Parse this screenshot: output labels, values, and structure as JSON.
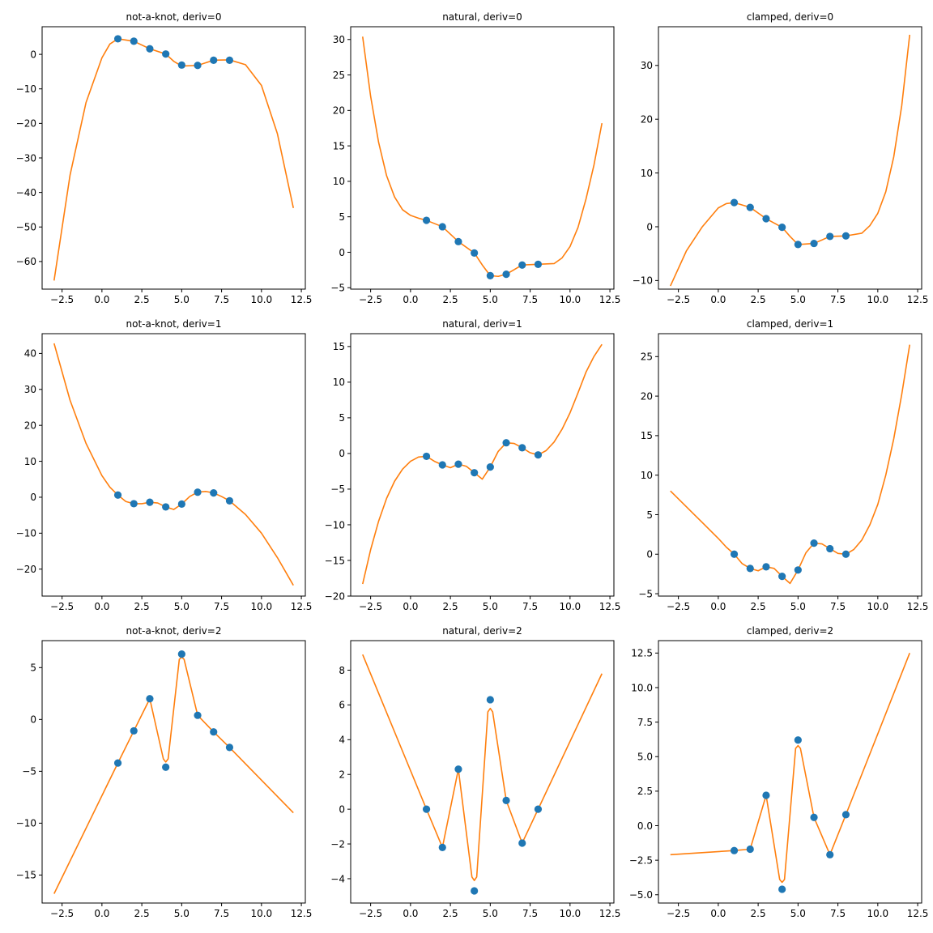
{
  "colors": {
    "points": "#1f77b4",
    "curve": "#ff7f0e",
    "axes": "#000000",
    "background": "#ffffff"
  },
  "chart_data": [
    {
      "type": "line",
      "title": "not-a-knot, deriv=0",
      "xlim": [
        -3.75,
        12.75
      ],
      "ylim": [
        -68,
        8
      ],
      "xticks": [
        -2.5,
        0.0,
        2.5,
        5.0,
        7.5,
        10.0,
        12.5
      ],
      "xtick_labels": [
        "−2.5",
        "0.0",
        "2.5",
        "5.0",
        "7.5",
        "10.0",
        "12.5"
      ],
      "yticks": [
        -60,
        -50,
        -40,
        -30,
        -20,
        -10,
        0
      ],
      "ytick_labels": [
        "−60",
        "−50",
        "−40",
        "−30",
        "−20",
        "−10",
        "0"
      ],
      "points": {
        "x": [
          1,
          2,
          3,
          4,
          5,
          6,
          7,
          8
        ],
        "y": [
          4.5,
          3.8,
          1.6,
          0.1,
          -3.1,
          -3.2,
          -1.7,
          -1.7
        ]
      },
      "curve": {
        "x": [
          -3,
          -2,
          -1,
          0,
          0.5,
          1,
          2,
          3,
          4,
          4.5,
          5,
          6,
          7,
          8,
          9,
          10,
          11,
          12
        ],
        "y": [
          -65.5,
          -35,
          -14,
          -1,
          3,
          4.5,
          3.8,
          1.6,
          0.1,
          -2,
          -3.4,
          -3.2,
          -1.7,
          -1.6,
          -3,
          -9,
          -23,
          -44.5
        ]
      }
    },
    {
      "type": "line",
      "title": "natural, deriv=0",
      "xlim": [
        -3.75,
        12.75
      ],
      "ylim": [
        -5.2,
        31.8
      ],
      "xticks": [
        -2.5,
        0.0,
        2.5,
        5.0,
        7.5,
        10.0,
        12.5
      ],
      "xtick_labels": [
        "−2.5",
        "0.0",
        "2.5",
        "5.0",
        "7.5",
        "10.0",
        "12.5"
      ],
      "yticks": [
        -5,
        0,
        5,
        10,
        15,
        20,
        25,
        30
      ],
      "ytick_labels": [
        "−5",
        "0",
        "5",
        "10",
        "15",
        "20",
        "25",
        "30"
      ],
      "points": {
        "x": [
          1,
          2,
          3,
          4,
          5,
          6,
          7,
          8
        ],
        "y": [
          4.5,
          3.6,
          1.5,
          -0.1,
          -3.3,
          -3.1,
          -1.8,
          -1.7
        ]
      },
      "curve": {
        "x": [
          -3,
          -2.5,
          -2,
          -1.5,
          -1,
          -0.5,
          0,
          0.5,
          1,
          2,
          3,
          4,
          4.5,
          5,
          5.5,
          6,
          7,
          8,
          9,
          9.5,
          10,
          10.5,
          11,
          11.5,
          12
        ],
        "y": [
          30.4,
          22,
          15.5,
          10.8,
          7.8,
          6,
          5.2,
          4.8,
          4.5,
          3.6,
          1.5,
          -0.1,
          -1.8,
          -3.3,
          -3.4,
          -3.1,
          -1.8,
          -1.7,
          -1.6,
          -0.8,
          0.8,
          3.5,
          7.5,
          12.3,
          18.2
        ]
      }
    },
    {
      "type": "line",
      "title": "clamped, deriv=0",
      "xlim": [
        -3.75,
        12.75
      ],
      "ylim": [
        -11.6,
        37.2
      ],
      "xticks": [
        -2.5,
        0.0,
        2.5,
        5.0,
        7.5,
        10.0,
        12.5
      ],
      "xtick_labels": [
        "−2.5",
        "0.0",
        "2.5",
        "5.0",
        "7.5",
        "10.0",
        "12.5"
      ],
      "yticks": [
        -10,
        0,
        10,
        20,
        30
      ],
      "ytick_labels": [
        "−10",
        "0",
        "10",
        "20",
        "30"
      ],
      "points": {
        "x": [
          1,
          2,
          3,
          4,
          5,
          6,
          7,
          8
        ],
        "y": [
          4.5,
          3.6,
          1.5,
          -0.1,
          -3.3,
          -3.1,
          -1.8,
          -1.7
        ]
      },
      "curve": {
        "x": [
          -3,
          -2,
          -1,
          0,
          0.5,
          1,
          2,
          3,
          4,
          4.5,
          5,
          6,
          7,
          8,
          9,
          9.5,
          10,
          10.5,
          11,
          11.5,
          12
        ],
        "y": [
          -11,
          -4.5,
          0,
          3.5,
          4.3,
          4.5,
          3.6,
          1.5,
          -0.1,
          -1.8,
          -3.3,
          -3.1,
          -1.8,
          -1.7,
          -1.2,
          0.2,
          2.5,
          6.5,
          13,
          22.5,
          35.7
        ]
      }
    },
    {
      "type": "line",
      "title": "not-a-knot, deriv=1",
      "xlim": [
        -3.75,
        12.75
      ],
      "ylim": [
        -27.5,
        45.5
      ],
      "xticks": [
        -2.5,
        0.0,
        2.5,
        5.0,
        7.5,
        10.0,
        12.5
      ],
      "xtick_labels": [
        "−2.5",
        "0.0",
        "2.5",
        "5.0",
        "7.5",
        "10.0",
        "12.5"
      ],
      "yticks": [
        -20,
        -10,
        0,
        10,
        20,
        30,
        40
      ],
      "ytick_labels": [
        "−20",
        "−10",
        "0",
        "10",
        "20",
        "30",
        "40"
      ],
      "points": {
        "x": [
          1,
          2,
          3,
          4,
          5,
          6,
          7,
          8
        ],
        "y": [
          0.6,
          -1.8,
          -1.4,
          -2.7,
          -1.9,
          1.4,
          1.2,
          -1.0
        ]
      },
      "curve": {
        "x": [
          -3,
          -2,
          -1,
          0,
          0.5,
          1,
          1.5,
          2,
          2.5,
          3,
          3.5,
          4,
          4.5,
          5,
          5.5,
          6,
          6.5,
          7,
          7.5,
          8,
          9,
          10,
          11,
          12
        ],
        "y": [
          42.8,
          27,
          15,
          6,
          2.8,
          0.6,
          -1.2,
          -1.8,
          -1.8,
          -1.4,
          -1.6,
          -2.7,
          -3.4,
          -1.9,
          0.2,
          1.4,
          1.6,
          1.2,
          0.2,
          -1.0,
          -4.8,
          -10,
          -16.8,
          -24.5
        ]
      }
    },
    {
      "type": "line",
      "title": "natural, deriv=1",
      "xlim": [
        -3.75,
        12.75
      ],
      "ylim": [
        -20,
        16.8
      ],
      "xticks": [
        -2.5,
        0.0,
        2.5,
        5.0,
        7.5,
        10.0,
        12.5
      ],
      "xtick_labels": [
        "−2.5",
        "0.0",
        "2.5",
        "5.0",
        "7.5",
        "10.0",
        "12.5"
      ],
      "yticks": [
        -20,
        -15,
        -10,
        -5,
        0,
        5,
        10,
        15
      ],
      "ytick_labels": [
        "−20",
        "−15",
        "−10",
        "−5",
        "0",
        "5",
        "10",
        "15"
      ],
      "points": {
        "x": [
          1,
          2,
          3,
          4,
          5,
          6,
          7,
          8
        ],
        "y": [
          -0.4,
          -1.6,
          -1.5,
          -2.7,
          -1.9,
          1.5,
          0.8,
          -0.2
        ]
      },
      "curve": {
        "x": [
          -3,
          -2.5,
          -2,
          -1.5,
          -1,
          -0.5,
          0,
          0.5,
          1,
          1.5,
          2,
          2.5,
          3,
          3.5,
          4,
          4.5,
          5,
          5.5,
          6,
          6.5,
          7,
          7.5,
          8,
          8.5,
          9,
          9.5,
          10,
          10.5,
          11,
          11.5,
          12
        ],
        "y": [
          -18.3,
          -13.5,
          -9.5,
          -6.3,
          -3.9,
          -2.2,
          -1.1,
          -0.5,
          -0.4,
          -1.1,
          -1.6,
          -2.0,
          -1.5,
          -1.8,
          -2.7,
          -3.6,
          -1.9,
          0.3,
          1.5,
          1.4,
          0.8,
          0.1,
          -0.2,
          0.4,
          1.6,
          3.4,
          5.7,
          8.5,
          11.4,
          13.6,
          15.3
        ]
      }
    },
    {
      "type": "line",
      "title": "clamped, deriv=1",
      "xlim": [
        -3.75,
        12.75
      ],
      "ylim": [
        -5.3,
        27.9
      ],
      "xticks": [
        -2.5,
        0.0,
        2.5,
        5.0,
        7.5,
        10.0,
        12.5
      ],
      "xtick_labels": [
        "−2.5",
        "0.0",
        "2.5",
        "5.0",
        "7.5",
        "10.0",
        "12.5"
      ],
      "yticks": [
        -5,
        0,
        5,
        10,
        15,
        20,
        25
      ],
      "ytick_labels": [
        "−5",
        "0",
        "5",
        "10",
        "15",
        "20",
        "25"
      ],
      "points": {
        "x": [
          1,
          2,
          3,
          4,
          5,
          6,
          7,
          8
        ],
        "y": [
          0.0,
          -1.8,
          -1.6,
          -2.8,
          -2.0,
          1.4,
          0.7,
          0.0
        ]
      },
      "curve": {
        "x": [
          -3,
          -2,
          -1,
          0,
          0.5,
          1,
          1.5,
          2,
          2.5,
          3,
          3.5,
          4,
          4.5,
          5,
          5.5,
          6,
          6.5,
          7,
          7.5,
          8,
          8.5,
          9,
          9.5,
          10,
          10.5,
          11,
          11.5,
          12
        ],
        "y": [
          8.0,
          6.0,
          4.0,
          2.0,
          0.9,
          0.0,
          -1.2,
          -1.8,
          -2.1,
          -1.6,
          -1.8,
          -2.8,
          -3.7,
          -2.0,
          0.2,
          1.4,
          1.3,
          0.7,
          0.1,
          0.0,
          0.6,
          1.8,
          3.7,
          6.3,
          10.0,
          14.6,
          20.2,
          26.5
        ]
      }
    },
    {
      "type": "line",
      "title": "not-a-knot, deriv=2",
      "xlim": [
        -3.75,
        12.75
      ],
      "ylim": [
        -17.7,
        7.6
      ],
      "xticks": [
        -2.5,
        0.0,
        2.5,
        5.0,
        7.5,
        10.0,
        12.5
      ],
      "xtick_labels": [
        "−2.5",
        "0.0",
        "2.5",
        "5.0",
        "7.5",
        "10.0",
        "12.5"
      ],
      "yticks": [
        -15,
        -10,
        -5,
        0,
        5
      ],
      "ytick_labels": [
        "−15",
        "−10",
        "−5",
        "0",
        "5"
      ],
      "points": {
        "x": [
          1,
          2,
          3,
          4,
          5,
          6,
          7,
          8
        ],
        "y": [
          -4.2,
          -1.1,
          2.0,
          -4.6,
          6.3,
          0.4,
          -1.2,
          -2.7
        ]
      },
      "curve": {
        "x": [
          -3,
          1,
          2,
          3,
          3.85,
          4,
          4.15,
          4.85,
          5,
          5.15,
          6,
          7,
          8,
          12
        ],
        "y": [
          -16.8,
          -4.2,
          -1.1,
          2.0,
          -3.8,
          -4.1,
          -3.8,
          5.8,
          6.0,
          5.8,
          0.4,
          -1.2,
          -2.7,
          -9.0
        ]
      }
    },
    {
      "type": "line",
      "title": "natural, deriv=2",
      "xlim": [
        -3.75,
        12.75
      ],
      "ylim": [
        -5.4,
        9.7
      ],
      "xticks": [
        -2.5,
        0.0,
        2.5,
        5.0,
        7.5,
        10.0,
        12.5
      ],
      "xtick_labels": [
        "−2.5",
        "0.0",
        "2.5",
        "5.0",
        "7.5",
        "10.0",
        "12.5"
      ],
      "yticks": [
        -4,
        -2,
        0,
        2,
        4,
        6,
        8
      ],
      "ytick_labels": [
        "−4",
        "−2",
        "0",
        "2",
        "4",
        "6",
        "8"
      ],
      "points": {
        "x": [
          1,
          2,
          3,
          4,
          5,
          6,
          7,
          8
        ],
        "y": [
          0.0,
          -2.2,
          2.3,
          -4.7,
          6.3,
          0.5,
          -1.95,
          0.0
        ]
      },
      "curve": {
        "x": [
          -3,
          1,
          2,
          3,
          3.85,
          4,
          4.15,
          4.85,
          5,
          5.15,
          6,
          7,
          8,
          12
        ],
        "y": [
          8.9,
          0.0,
          -2.2,
          2.3,
          -3.9,
          -4.1,
          -3.9,
          5.6,
          5.8,
          5.6,
          0.5,
          -1.95,
          0.0,
          7.8
        ]
      }
    },
    {
      "type": "line",
      "title": "clamped, deriv=2",
      "xlim": [
        -3.75,
        12.75
      ],
      "ylim": [
        -5.6,
        13.4
      ],
      "xticks": [
        -2.5,
        0.0,
        2.5,
        5.0,
        7.5,
        10.0,
        12.5
      ],
      "xtick_labels": [
        "−2.5",
        "0.0",
        "2.5",
        "5.0",
        "7.5",
        "10.0",
        "12.5"
      ],
      "yticks": [
        -5.0,
        -2.5,
        0.0,
        2.5,
        5.0,
        7.5,
        10.0,
        12.5
      ],
      "ytick_labels": [
        "−5.0",
        "−2.5",
        "0.0",
        "2.5",
        "5.0",
        "7.5",
        "10.0",
        "12.5"
      ],
      "points": {
        "x": [
          1,
          2,
          3,
          4,
          5,
          6,
          7,
          8
        ],
        "y": [
          -1.8,
          -1.7,
          2.2,
          -4.6,
          6.2,
          0.6,
          -2.1,
          0.8
        ]
      },
      "curve": {
        "x": [
          -3,
          1,
          2,
          3,
          3.85,
          4,
          4.15,
          4.85,
          5,
          5.15,
          6,
          7,
          8,
          12
        ],
        "y": [
          -2.1,
          -1.8,
          -1.7,
          2.2,
          -3.9,
          -4.1,
          -3.9,
          5.6,
          5.8,
          5.6,
          0.6,
          -2.1,
          0.8,
          12.5
        ]
      }
    }
  ]
}
